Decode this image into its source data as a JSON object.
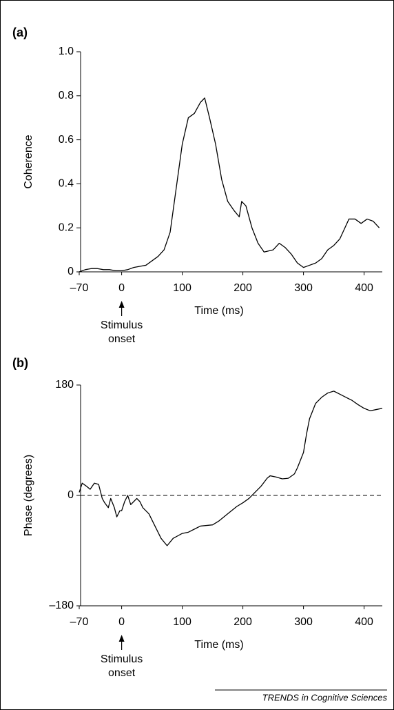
{
  "footer": "TRENDS in Cognitive Sciences",
  "chart_data": [
    {
      "type": "line",
      "panel_label": "(a)",
      "ylabel": "Coherence",
      "xlabel": "Time (ms)",
      "xlim": [
        -70,
        430
      ],
      "xticks": [
        {
          "value": -70,
          "label": "–70"
        },
        0,
        100,
        200,
        300,
        400
      ],
      "ylim": [
        0,
        1
      ],
      "yticks": [
        0,
        0.2,
        0.4,
        0.6,
        0.8,
        {
          "value": 1,
          "label": "1.0"
        }
      ],
      "color": "#000000",
      "annotation": {
        "text": [
          "Stimulus",
          "onset"
        ],
        "x": 0
      },
      "x": [
        -70,
        -60,
        -50,
        -40,
        -30,
        -20,
        -10,
        0,
        10,
        20,
        30,
        40,
        50,
        60,
        70,
        80,
        90,
        100,
        110,
        120,
        130,
        137,
        145,
        155,
        165,
        175,
        185,
        194,
        198,
        205,
        215,
        225,
        235,
        250,
        260,
        270,
        280,
        290,
        300,
        310,
        320,
        330,
        340,
        350,
        360,
        370,
        375,
        385,
        395,
        405,
        415,
        425
      ],
      "values": [
        0,
        0.01,
        0.015,
        0.015,
        0.01,
        0.01,
        0.005,
        0.005,
        0.01,
        0.02,
        0.025,
        0.03,
        0.05,
        0.07,
        0.1,
        0.18,
        0.38,
        0.58,
        0.7,
        0.72,
        0.77,
        0.79,
        0.7,
        0.58,
        0.42,
        0.32,
        0.28,
        0.25,
        0.32,
        0.3,
        0.2,
        0.13,
        0.09,
        0.1,
        0.13,
        0.11,
        0.08,
        0.04,
        0.02,
        0.03,
        0.04,
        0.06,
        0.1,
        0.12,
        0.15,
        0.21,
        0.24,
        0.24,
        0.22,
        0.24,
        0.23,
        0.2
      ]
    },
    {
      "type": "line",
      "panel_label": "(b)",
      "ylabel": "Phase (degrees)",
      "xlabel": "Time (ms)",
      "xlim": [
        -70,
        430
      ],
      "xticks": [
        {
          "value": -70,
          "label": "–70"
        },
        0,
        100,
        200,
        300,
        400
      ],
      "ylim": [
        -180,
        180
      ],
      "yticks": [
        {
          "value": -180,
          "label": "–180"
        },
        0,
        180
      ],
      "hline": 0,
      "color": "#000000",
      "annotation": {
        "text": [
          "Stimulus",
          "onset"
        ],
        "x": 0
      },
      "x": [
        -70,
        -65,
        -58,
        -52,
        -45,
        -38,
        -32,
        -28,
        -22,
        -18,
        -12,
        -8,
        -3,
        0,
        5,
        10,
        15,
        20,
        25,
        30,
        35,
        45,
        55,
        65,
        75,
        85,
        100,
        110,
        120,
        130,
        150,
        160,
        175,
        190,
        200,
        210,
        220,
        230,
        240,
        245,
        255,
        265,
        275,
        285,
        290,
        300,
        305,
        310,
        320,
        330,
        340,
        350,
        360,
        370,
        380,
        390,
        400,
        410,
        420,
        430
      ],
      "values": [
        5,
        20,
        15,
        10,
        20,
        18,
        -5,
        -12,
        -20,
        -5,
        -20,
        -35,
        -25,
        -25,
        -10,
        0,
        -15,
        -10,
        -5,
        -10,
        -20,
        -30,
        -50,
        -70,
        -82,
        -70,
        -62,
        -60,
        -55,
        -50,
        -48,
        -42,
        -30,
        -18,
        -12,
        -5,
        5,
        15,
        28,
        32,
        30,
        27,
        28,
        35,
        45,
        70,
        100,
        125,
        150,
        160,
        167,
        170,
        165,
        160,
        155,
        148,
        142,
        138,
        140,
        142
      ]
    }
  ]
}
